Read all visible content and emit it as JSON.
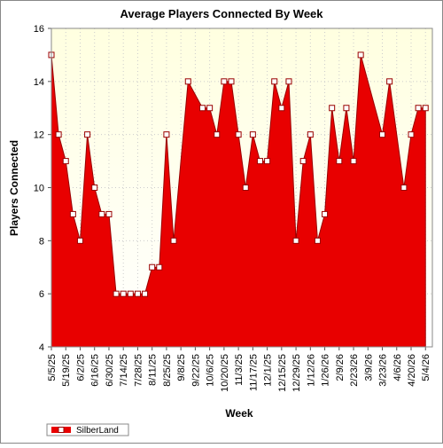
{
  "chart_data": {
    "type": "area",
    "title": "Average Players Connected By Week",
    "x_label": "Week",
    "y_label": "Players Connected",
    "categories": [
      "5/5/25",
      null,
      "5/19/25",
      null,
      "6/2/25",
      null,
      "6/16/25",
      null,
      "6/30/25",
      null,
      "7/14/25",
      null,
      "7/28/25",
      null,
      "8/11/25",
      null,
      "8/25/25",
      null,
      "9/8/25",
      null,
      "9/22/25",
      null,
      "10/6/25",
      null,
      "10/20/25",
      null,
      "11/3/25",
      null,
      "11/17/25",
      null,
      "12/1/25",
      null,
      "12/15/25",
      null,
      "12/29/25",
      null,
      "1/12/26",
      null,
      "1/26/26",
      null,
      "2/9/26",
      null,
      "2/23/26",
      null,
      "3/9/26",
      null,
      "3/23/26",
      null,
      "4/6/26",
      null,
      "4/20/26",
      null,
      "5/4/26"
    ],
    "series": [
      {
        "name": "SilberLand",
        "color": "#e80000",
        "values": [
          15,
          12,
          11,
          9,
          8,
          12,
          10,
          9,
          9,
          6,
          6,
          6,
          6,
          6,
          7,
          7,
          12,
          8,
          null,
          14,
          null,
          13,
          13,
          12,
          14,
          14,
          12,
          10,
          12,
          11,
          11,
          14,
          13,
          14,
          8,
          11,
          12,
          8,
          9,
          13,
          11,
          13,
          11,
          15,
          null,
          null,
          12,
          14,
          null,
          10,
          12,
          13,
          13
        ]
      }
    ],
    "ylim": [
      4,
      16
    ],
    "yticks": [
      4,
      6,
      8,
      10,
      12,
      14,
      16
    ],
    "grid": true,
    "legend": "bottom-left"
  }
}
